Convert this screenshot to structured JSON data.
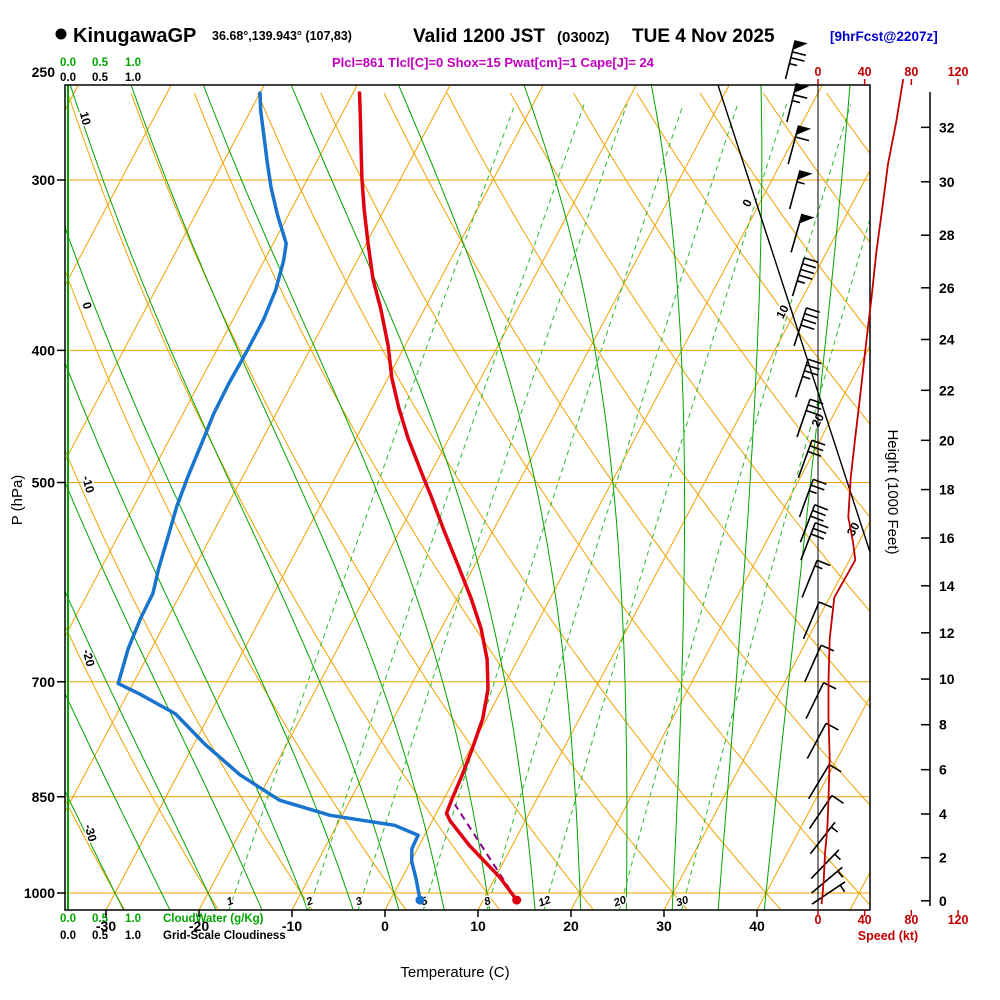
{
  "header": {
    "station": "KinugawaGP",
    "coords": "36.68°,139.943° (107,83)",
    "valid_main": "Valid 1200 JST",
    "valid_z": "(0300Z)",
    "valid_date": "TUE 4 Nov 2025",
    "fcst": "[9hrFcst@2207z]",
    "params": "Plcl=861 Tlcl[C]=0 Shox=15 Pwat[cm]=1 Cape[J]= 24"
  },
  "axis_labels": {
    "pressure": "P (hPa)",
    "temperature": "Temperature (C)",
    "height": "Height (1000 Feet)",
    "speed": "Speed (kt)",
    "cloudwater": "CloudWater (g/Kg)",
    "cloudiness": "Grid-Scale Cloudiness"
  },
  "colors": {
    "grid_orange": "#f0a202",
    "green": "#00a300",
    "green_light": "#2eb82e",
    "temp_red": "#e00010",
    "dewpoint_blue": "#1874cd",
    "speed_red": "#c00000",
    "magenta": "#bf00bf",
    "fcst_blue": "#0000cc",
    "parcel_purple": "#8a008a"
  },
  "chart_data": {
    "type": "skewt_log_p_sounding",
    "title": "KinugawaGP Valid 1200 JST (0300Z) TUE 4 Nov 2025",
    "xlabel": "Temperature (C)",
    "ylabel": "P (hPa)",
    "y2label": "Height (1000 Feet)",
    "speed_axis_label": "Speed (kt)",
    "pressure_range_hpa": [
      1030,
      250
    ],
    "temperature_range_c": [
      -30,
      40
    ],
    "pressure_ticks": [
      250,
      300,
      400,
      500,
      700,
      850,
      1000
    ],
    "temperature_ticks": [
      -30,
      -20,
      -10,
      0,
      10,
      20,
      30,
      40
    ],
    "height_ticks_kft": [
      0,
      2,
      4,
      6,
      8,
      10,
      12,
      14,
      16,
      18,
      20,
      22,
      24,
      26,
      28,
      30,
      32
    ],
    "speed_ticks": [
      0,
      40,
      80,
      120
    ],
    "cloud_ticks": [
      "0.0",
      "0.5",
      "1.0"
    ],
    "isotherm_labels": [
      0,
      10,
      20,
      30
    ],
    "dry_adiabat_labels": [
      {
        "text": "10",
        "value": 10,
        "color": "#00a300"
      },
      {
        "text": "0",
        "value": 0,
        "color": "#00a300"
      },
      {
        "text": "-10",
        "value": -10,
        "color": "#f0a202"
      },
      {
        "text": "-20",
        "value": -20,
        "color": "#f0a202"
      },
      {
        "text": "-30",
        "value": -30,
        "color": "#f0a202"
      }
    ],
    "mixing_ratio_labels": [
      1,
      2,
      3,
      5,
      8,
      12,
      20,
      30
    ],
    "temperature_profile": [
      [
        259,
        -49.3
      ],
      [
        267,
        -48.2
      ],
      [
        281,
        -46.4
      ],
      [
        299,
        -44.2
      ],
      [
        315,
        -42.2
      ],
      [
        334,
        -39.8
      ],
      [
        355,
        -37.2
      ],
      [
        373,
        -34.7
      ],
      [
        397,
        -31.8
      ],
      [
        419,
        -29.6
      ],
      [
        441,
        -27.1
      ],
      [
        464,
        -24.4
      ],
      [
        495,
        -20.6
      ],
      [
        511,
        -18.7
      ],
      [
        543,
        -15.2
      ],
      [
        572,
        -12.1
      ],
      [
        608,
        -8.5
      ],
      [
        640,
        -5.7
      ],
      [
        674,
        -3.3
      ],
      [
        709,
        -1.5
      ],
      [
        745,
        -0.4
      ],
      [
        784,
        0.2
      ],
      [
        819,
        0.6
      ],
      [
        855,
        0.9
      ],
      [
        874,
        1.1
      ],
      [
        885,
        1.9
      ],
      [
        923,
        5.4
      ],
      [
        974,
        10.5
      ],
      [
        1012,
        13.6
      ]
    ],
    "dewpoint_profile": [
      [
        259,
        -60.0
      ],
      [
        267,
        -58.9
      ],
      [
        278,
        -57.2
      ],
      [
        291,
        -55.3
      ],
      [
        304,
        -53.4
      ],
      [
        318,
        -51.2
      ],
      [
        334,
        -48.6
      ],
      [
        344,
        -47.9
      ],
      [
        361,
        -47.1
      ],
      [
        380,
        -46.7
      ],
      [
        401,
        -46.7
      ],
      [
        423,
        -46.8
      ],
      [
        445,
        -46.7
      ],
      [
        468,
        -46.3
      ],
      [
        495,
        -45.9
      ],
      [
        520,
        -45.4
      ],
      [
        548,
        -44.6
      ],
      [
        578,
        -43.8
      ],
      [
        603,
        -43.0
      ],
      [
        629,
        -42.9
      ],
      [
        662,
        -42.5
      ],
      [
        702,
        -41.6
      ],
      [
        715,
        -38.6
      ],
      [
        739,
        -33.7
      ],
      [
        778,
        -28.8
      ],
      [
        819,
        -23.3
      ],
      [
        855,
        -17.6
      ],
      [
        877,
        -11.3
      ],
      [
        892,
        -3.8
      ],
      [
        907,
        -0.7
      ],
      [
        928,
        -0.6
      ],
      [
        948,
        0.1
      ],
      [
        977,
        1.6
      ],
      [
        1012,
        3.2
      ]
    ],
    "wind_profile": [
      [
        253,
        73,
        14
      ],
      [
        272,
        67,
        14
      ],
      [
        292,
        60,
        15
      ],
      [
        315,
        55,
        15
      ],
      [
        339,
        50,
        16
      ],
      [
        365,
        46,
        17
      ],
      [
        397,
        41,
        18
      ],
      [
        433,
        36,
        18
      ],
      [
        463,
        32,
        19
      ],
      [
        496,
        28,
        20
      ],
      [
        530,
        26,
        20
      ],
      [
        553,
        30,
        21
      ],
      [
        570,
        32,
        21
      ],
      [
        607,
        14,
        22
      ],
      [
        651,
        10,
        23
      ],
      [
        700,
        9,
        24
      ],
      [
        745,
        9,
        26
      ],
      [
        797,
        10,
        28
      ],
      [
        853,
        9,
        31
      ],
      [
        897,
        8,
        34
      ],
      [
        936,
        6,
        38
      ],
      [
        976,
        5,
        44
      ],
      [
        1000,
        4,
        50
      ],
      [
        1019,
        3,
        56
      ]
    ],
    "parcel_path": [
      [
        1012,
        13.6
      ],
      [
        861,
        1.5
      ]
    ],
    "surface": {
      "p": 1012,
      "t": 13.6,
      "td": 3.2
    },
    "lcl_hpa": 861,
    "tlcl_c": 0,
    "showalter": 15,
    "pwat_cm": 1,
    "cape_j": 24
  }
}
